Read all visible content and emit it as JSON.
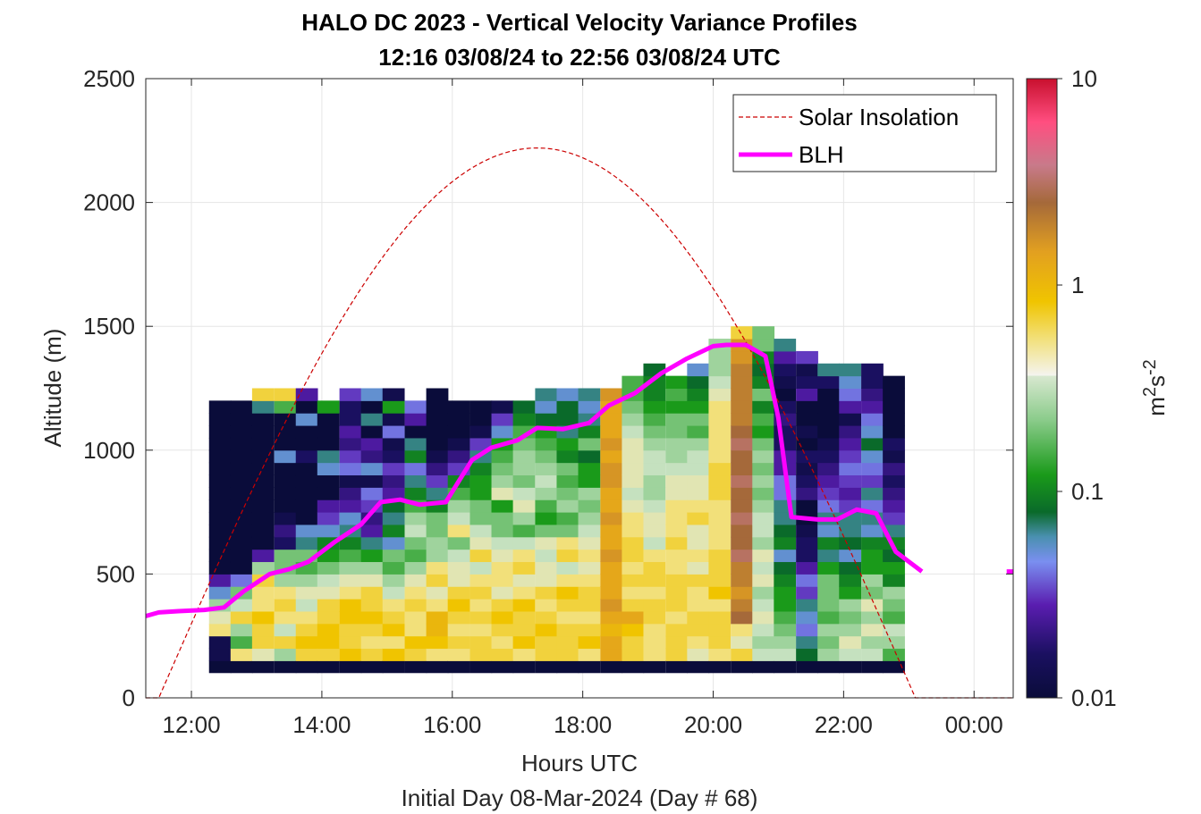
{
  "chart_data": {
    "type": "heatmap",
    "title_line1": "HALO DC 2023 - Vertical Velocity Variance Profiles",
    "title_line2": "12:16 03/08/24 to 22:56 03/08/24  UTC",
    "xlabel": "Hours UTC",
    "xlabel2": "Initial Day 08-Mar-2024 (Day # 68)",
    "ylabel": "Altitude (m)",
    "colorbar_label": "m",
    "colorbar_label_sup1": "2",
    "colorbar_label_mid": "s",
    "colorbar_label_sup2": "-2",
    "xlim_hours": [
      11.3,
      24.6
    ],
    "ylim": [
      0,
      2500
    ],
    "x_ticks": [
      {
        "value": 12,
        "label": "12:00"
      },
      {
        "value": 14,
        "label": "14:00"
      },
      {
        "value": 16,
        "label": "16:00"
      },
      {
        "value": 18,
        "label": "18:00"
      },
      {
        "value": 20,
        "label": "20:00"
      },
      {
        "value": 22,
        "label": "22:00"
      },
      {
        "value": 24,
        "label": "00:00"
      }
    ],
    "y_ticks": [
      0,
      500,
      1000,
      1500,
      2000,
      2500
    ],
    "y_tick_labels": [
      "0",
      "500",
      "1000",
      "1500",
      "2000",
      "2500"
    ],
    "colorbar": {
      "scale": "log",
      "range": [
        0.01,
        10
      ],
      "ticks": [
        0.01,
        0.1,
        1,
        10
      ],
      "tick_labels": [
        "0.01",
        "0.1",
        "1",
        "10"
      ]
    },
    "grid": true,
    "legend_position": "top-right",
    "legend": [
      {
        "label": "Solar Insolation",
        "style": "dashed",
        "color": "#cc0000"
      },
      {
        "label": "BLH",
        "style": "solid",
        "color": "#ff00ff"
      }
    ],
    "heatmap": {
      "time_start": 12.27,
      "time_step": 0.333,
      "alt_start": 100,
      "alt_step": 50,
      "row_altitudes_m": [
        100,
        150,
        200,
        250,
        300,
        350,
        400,
        450,
        500,
        550,
        600,
        650,
        700,
        750,
        800,
        850,
        900,
        950,
        1000,
        1050,
        1100,
        1150,
        1200,
        1250,
        1300,
        1350,
        1400,
        1450,
        1500
      ],
      "lowest_row_value": 0.01,
      "column_times_h": [
        12.27,
        12.6,
        12.93,
        13.27,
        13.6,
        13.93,
        14.27,
        14.6,
        14.93,
        15.27,
        15.6,
        15.93,
        16.27,
        16.6,
        16.93,
        17.27,
        17.6,
        17.93,
        18.27,
        18.6,
        18.93,
        19.27,
        19.6,
        19.93,
        20.27,
        20.6,
        20.93,
        21.27,
        21.6,
        21.93,
        22.27,
        22.6
      ],
      "column_top_alt_m": [
        1200,
        1200,
        1250,
        1250,
        1250,
        1200,
        1250,
        1250,
        1250,
        1200,
        1250,
        1200,
        1200,
        1200,
        1200,
        1250,
        1250,
        1250,
        1250,
        1300,
        1350,
        1300,
        1350,
        1450,
        1500,
        1500,
        1450,
        1400,
        1350,
        1350,
        1350,
        1300
      ],
      "columns_log10": [
        [
          -1.9,
          -1.9,
          -0.3,
          -0.4,
          -0.6,
          -1.3,
          -1.6,
          -2.0,
          -2.0,
          -2.0,
          -2.0,
          -2.0,
          -2.0,
          -2.0,
          -2.0,
          -2.0,
          -2.0,
          -2.0,
          -2.0,
          -2.0,
          -2.0,
          -2.0
        ],
        [
          -0.3,
          -0.8,
          -0.6,
          -0.2,
          -0.5,
          -0.7,
          -1.4,
          -2.0,
          -2.0,
          -2.0,
          -2.0,
          -2.0,
          -2.0,
          -2.0,
          -2.0,
          -2.0,
          -2.0,
          -2.0,
          -2.0,
          -2.0,
          -2.0,
          -2.0
        ],
        [
          -0.4,
          -0.2,
          -0.2,
          -0.1,
          -0.3,
          -0.3,
          -0.2,
          -0.6,
          -1.6,
          -2.0,
          -2.0,
          -2.0,
          -2.0,
          -2.0,
          -2.0,
          -2.0,
          -2.0,
          -2.0,
          -2.0,
          -2.0,
          -1.2,
          -0.2,
          -0.5
        ],
        [
          -0.6,
          -0.2,
          -0.5,
          -0.3,
          -0.2,
          -0.3,
          -0.6,
          -0.7,
          -0.7,
          -1.8,
          -1.7,
          -1.9,
          -2.0,
          -2.0,
          -2.0,
          -2.0,
          -1.3,
          -2.0,
          -2.0,
          -2.0,
          -0.8,
          -0.2,
          -0.1
        ],
        [
          -0.2,
          -0.1,
          -0.2,
          -0.3,
          -0.5,
          -0.4,
          -0.6,
          -0.8,
          -0.7,
          -1.2,
          -1.3,
          -2.0,
          -2.0,
          -2.0,
          -2.0,
          -2.0,
          -1.8,
          -2.0,
          -2.0,
          -1.3,
          -2.0,
          -1.6
        ],
        [
          -0.2,
          -0.1,
          -0.1,
          -0.2,
          -0.2,
          -0.4,
          -0.5,
          -0.7,
          -0.9,
          -1.0,
          -1.3,
          -1.5,
          -1.6,
          -2.0,
          -2.0,
          -1.3,
          -1.2,
          -2.0,
          -2.0,
          -2.0,
          -0.9,
          -1.6
        ],
        [
          -0.1,
          -0.2,
          -0.2,
          -0.1,
          -0.1,
          -0.3,
          -0.4,
          -0.6,
          -0.8,
          -1.0,
          -1.2,
          -1.3,
          -1.6,
          -1.7,
          -1.9,
          -1.4,
          -1.5,
          -1.7,
          -1.6,
          -1.8,
          -1.8,
          -1.5
        ],
        [
          -0.2,
          -0.3,
          -0.2,
          -0.1,
          -0.2,
          -0.2,
          -0.4,
          -0.6,
          -0.9,
          -1.2,
          -1.6,
          -1.7,
          -1.5,
          -1.4,
          -1.9,
          -1.3,
          -1.7,
          -1.6,
          -2.0,
          -1.2,
          -2.0,
          -1.3,
          -1.8
        ],
        [
          -0.1,
          -0.3,
          -0.1,
          -0.2,
          -0.3,
          -0.5,
          -0.6,
          -0.8,
          -0.7,
          -1.3,
          -1.0,
          -1.2,
          -1.1,
          -1.6,
          -1.7,
          -1.5,
          -1.8,
          -1.9,
          -1.4,
          -1.9,
          -0.9,
          -1.9,
          -1.2
        ],
        [
          -0.2,
          -0.1,
          -0.3,
          -0.3,
          -0.2,
          -0.3,
          -0.4,
          -0.6,
          -0.8,
          -0.7,
          -0.5,
          -0.6,
          -0.8,
          -1.0,
          -1.2,
          -1.4,
          -1.0,
          -1.2,
          -2.0,
          -1.6,
          -1.4,
          -1.5
        ],
        [
          -0.3,
          -0.1,
          0.0,
          0.0,
          -0.3,
          -0.4,
          -0.2,
          -0.3,
          -0.6,
          -0.6,
          -0.7,
          -0.7,
          -1.0,
          -1.2,
          -1.5,
          -1.7,
          -1.9,
          -2.0,
          -2.0,
          -2.0,
          -2.0,
          -2.0,
          -1.2
        ],
        [
          -0.3,
          -0.2,
          -0.3,
          -0.2,
          -0.1,
          -0.2,
          -0.4,
          -0.4,
          -0.5,
          -0.7,
          -0.3,
          -0.5,
          -0.6,
          -0.8,
          -1.0,
          -1.5,
          -1.7,
          -1.9,
          -2.0,
          -2.0,
          -2.0,
          -2.0,
          -1.2
        ],
        [
          -0.2,
          -0.2,
          -0.3,
          -0.2,
          -0.3,
          -0.2,
          -0.3,
          -0.5,
          -0.2,
          -0.4,
          -0.5,
          -0.7,
          -0.7,
          -0.9,
          -0.9,
          -1.0,
          -1.2,
          -1.5,
          -1.9,
          -2.0,
          -2.0,
          -2.0,
          -1.2
        ],
        [
          -0.2,
          -0.3,
          -0.2,
          -0.1,
          -0.2,
          -0.4,
          -0.3,
          -0.3,
          -0.4,
          -0.5,
          -0.7,
          -0.7,
          -0.9,
          -0.4,
          -0.6,
          -0.7,
          -0.8,
          -0.9,
          -1.3,
          -1.5,
          -1.9,
          -2.0,
          -2.0
        ],
        [
          -0.3,
          -0.1,
          -0.2,
          -0.2,
          -0.1,
          -0.3,
          -0.4,
          -0.2,
          -0.3,
          -0.5,
          -0.8,
          -0.6,
          -0.4,
          -0.5,
          -0.7,
          -0.6,
          -0.6,
          -0.7,
          -0.8,
          -1.0,
          -1.1,
          -1.2,
          -1.5
        ],
        [
          -0.2,
          -0.2,
          -0.1,
          -0.2,
          -0.3,
          -0.2,
          -0.4,
          -0.4,
          -0.5,
          -0.4,
          -0.7,
          -0.9,
          -0.8,
          -0.6,
          -0.5,
          -0.6,
          -0.7,
          -0.8,
          -0.9,
          -1.1,
          -1.3,
          -1.2
        ],
        [
          -0.2,
          -0.2,
          -0.2,
          -0.3,
          -0.2,
          -0.1,
          -0.3,
          -0.5,
          -0.2,
          -0.3,
          -0.7,
          -0.8,
          -0.6,
          -0.7,
          -0.8,
          -0.7,
          -1.0,
          -0.9,
          -1.2,
          -1.1,
          -1.1,
          -1.3,
          -1.0
        ],
        [
          -0.3,
          -0.1,
          -0.2,
          -0.3,
          -0.2,
          -0.2,
          -0.3,
          -0.4,
          -0.3,
          -0.4,
          -0.5,
          -0.6,
          -0.7,
          -0.6,
          -0.9,
          -0.9,
          -1.1,
          -0.7,
          -1.0,
          -1.2,
          -1.3,
          -1.2,
          -1.1
        ],
        [
          0.1,
          0.1,
          0.0,
          0.1,
          0.2,
          0.1,
          0.1,
          0.1,
          0.2,
          0.1,
          0.1,
          0.2,
          0.1,
          0.1,
          0.2,
          0.2,
          0.1,
          0.2,
          0.1,
          0.1,
          0.1,
          0.2
        ],
        [
          -0.2,
          -0.2,
          -0.1,
          0.1,
          -0.2,
          -0.3,
          -0.2,
          -0.3,
          -0.2,
          -0.2,
          -0.3,
          -0.3,
          -0.4,
          -0.5,
          -0.4,
          -0.4,
          -0.4,
          -0.4,
          -0.5,
          -0.6,
          -0.7,
          -0.8,
          -0.8,
          -1.1
        ],
        [
          -0.3,
          -0.3,
          -0.3,
          -0.2,
          -0.2,
          -0.3,
          -0.2,
          -0.2,
          -0.3,
          -0.5,
          -0.4,
          -0.4,
          -0.5,
          -0.6,
          -0.6,
          -0.5,
          -0.5,
          -0.6,
          -0.7,
          -0.8,
          -0.9,
          -1.0,
          -1.0,
          -1.1,
          -1.3
        ],
        [
          -0.2,
          -0.2,
          -0.2,
          -0.3,
          -0.2,
          -0.2,
          -0.2,
          -0.3,
          -0.3,
          -0.2,
          -0.3,
          -0.3,
          -0.3,
          -0.4,
          -0.4,
          -0.5,
          -0.6,
          -0.6,
          -0.7,
          -0.7,
          -0.9,
          -0.8,
          -0.9,
          -1.0
        ],
        [
          -0.4,
          -0.3,
          -0.2,
          -0.2,
          -0.3,
          -0.3,
          -0.2,
          -0.4,
          -0.3,
          -0.4,
          -0.4,
          -0.2,
          -0.3,
          -0.4,
          -0.4,
          -0.5,
          -0.5,
          -0.6,
          -0.8,
          -0.7,
          -0.9,
          -1.0,
          -1.1,
          -1.3,
          -1.2,
          -0.7
        ],
        [
          -0.3,
          -0.2,
          -0.2,
          -0.2,
          -0.3,
          -0.1,
          -0.2,
          -0.2,
          -0.2,
          -0.3,
          -0.3,
          -0.3,
          -0.3,
          -0.2,
          -0.2,
          -0.2,
          -0.3,
          -0.3,
          -0.3,
          -0.3,
          -0.3,
          -0.4,
          -0.5,
          -0.6,
          -0.6,
          -0.6,
          -0.4
        ],
        [
          -0.2,
          -0.4,
          -0.3,
          0.4,
          0.3,
          0.2,
          0.3,
          0.3,
          0.5,
          0.4,
          0.4,
          0.5,
          0.4,
          0.4,
          0.5,
          0.4,
          0.4,
          0.5,
          0.4,
          0.3,
          0.3,
          0.3,
          0.3,
          0.3,
          0.2,
          0.2,
          -0.2,
          -0.4
        ],
        [
          -0.5,
          -0.6,
          -0.5,
          -0.4,
          -0.5,
          -0.6,
          -0.4,
          -0.5,
          -0.4,
          -0.6,
          -0.5,
          -0.5,
          -0.6,
          -0.7,
          -0.6,
          -0.7,
          -0.6,
          -0.7,
          -0.9,
          -0.8,
          -1.0,
          -0.7,
          -1.0,
          -1.1,
          -1.0,
          -0.7,
          -0.7,
          -1.2
        ],
        [
          -0.5,
          -0.6,
          -0.7,
          -0.8,
          -0.9,
          -0.9,
          -1.0,
          -1.1,
          -1.3,
          -1.0,
          -1.1,
          -1.2,
          -1.2,
          -1.4,
          -1.4,
          -1.6,
          -1.6,
          -1.8,
          -1.8,
          -1.7,
          -1.8,
          -2.0,
          -1.9,
          -1.8,
          -1.6,
          -1.2,
          -1.3
        ],
        [
          -1.1,
          -1.2,
          -1.4,
          -1.3,
          -1.2,
          -1.5,
          -1.4,
          -1.6,
          -1.8,
          -1.8,
          -1.9,
          -2.0,
          -2.0,
          -1.7,
          -1.8,
          -1.9,
          -1.8,
          -2.0,
          -1.9,
          -2.0,
          -2.0,
          -1.6,
          -1.8,
          -1.9,
          -1.5,
          -1.2
        ],
        [
          -0.6,
          -0.7,
          -0.6,
          -0.8,
          -0.7,
          -0.7,
          -0.7,
          -0.9,
          -1.2,
          -1.0,
          -1.3,
          -1.2,
          -1.4,
          -1.5,
          -1.6,
          -1.7,
          -1.8,
          -1.9,
          -2.0,
          -2.0,
          -2.0,
          -2.0,
          -1.8,
          -1.2,
          -1.3,
          -1.2
        ],
        [
          -0.5,
          -0.4,
          -0.6,
          -0.7,
          -0.6,
          -0.9,
          -1.0,
          -1.1,
          -1.3,
          -1.1,
          -1.2,
          -1.2,
          -1.5,
          -1.6,
          -1.5,
          -1.4,
          -1.5,
          -1.6,
          -1.7,
          -1.9,
          -1.6,
          -1.4,
          -1.3,
          -1.2,
          -1.0,
          -1.2
        ],
        [
          -0.5,
          -0.6,
          -0.4,
          -0.6,
          -0.4,
          -0.7,
          -0.6,
          -0.9,
          -0.9,
          -1.0,
          -1.3,
          -1.2,
          -1.4,
          -1.2,
          -1.5,
          -1.4,
          -1.3,
          -1.1,
          -1.3,
          -1.4,
          -1.6,
          -1.7,
          -1.8,
          -1.8,
          -1.9,
          -2.0
        ],
        [
          -0.8,
          -0.6,
          -0.5,
          -0.8,
          -0.7,
          -0.6,
          -1.0,
          -0.9,
          -1.1,
          -1.0,
          -1.2,
          -1.5,
          -1.6,
          -1.7,
          -1.8,
          -1.7,
          -1.9,
          -1.8,
          -2.0,
          -2.0,
          -2.0,
          -2.0,
          -2.0
        ]
      ]
    },
    "blh": {
      "x_hours": [
        11.3,
        11.5,
        11.8,
        12.2,
        12.5,
        12.8,
        13.2,
        13.5,
        13.8,
        14.2,
        14.6,
        14.9,
        15.2,
        15.5,
        15.9,
        16.3,
        16.6,
        17.0,
        17.3,
        17.7,
        18.1,
        18.4,
        18.8,
        19.2,
        19.6,
        20.0,
        20.2,
        20.5,
        20.8,
        21.0,
        21.2,
        21.6,
        21.9,
        22.2,
        22.5,
        22.8,
        23.2
      ],
      "y_m": [
        330,
        345,
        350,
        355,
        365,
        430,
        500,
        520,
        550,
        630,
        700,
        790,
        800,
        780,
        790,
        960,
        1010,
        1040,
        1090,
        1085,
        1110,
        1180,
        1230,
        1310,
        1370,
        1420,
        1425,
        1425,
        1380,
        1130,
        730,
        720,
        720,
        760,
        745,
        590,
        510
      ],
      "offscale_marker_x_hours": 24.5,
      "offscale_marker_y_m": 510
    },
    "solar_insolation": {
      "sunrise_hours": 11.5,
      "sunset_hours": 23.1,
      "peak_hours": 17.3,
      "peak_altitude_equiv_m": 2220
    }
  }
}
